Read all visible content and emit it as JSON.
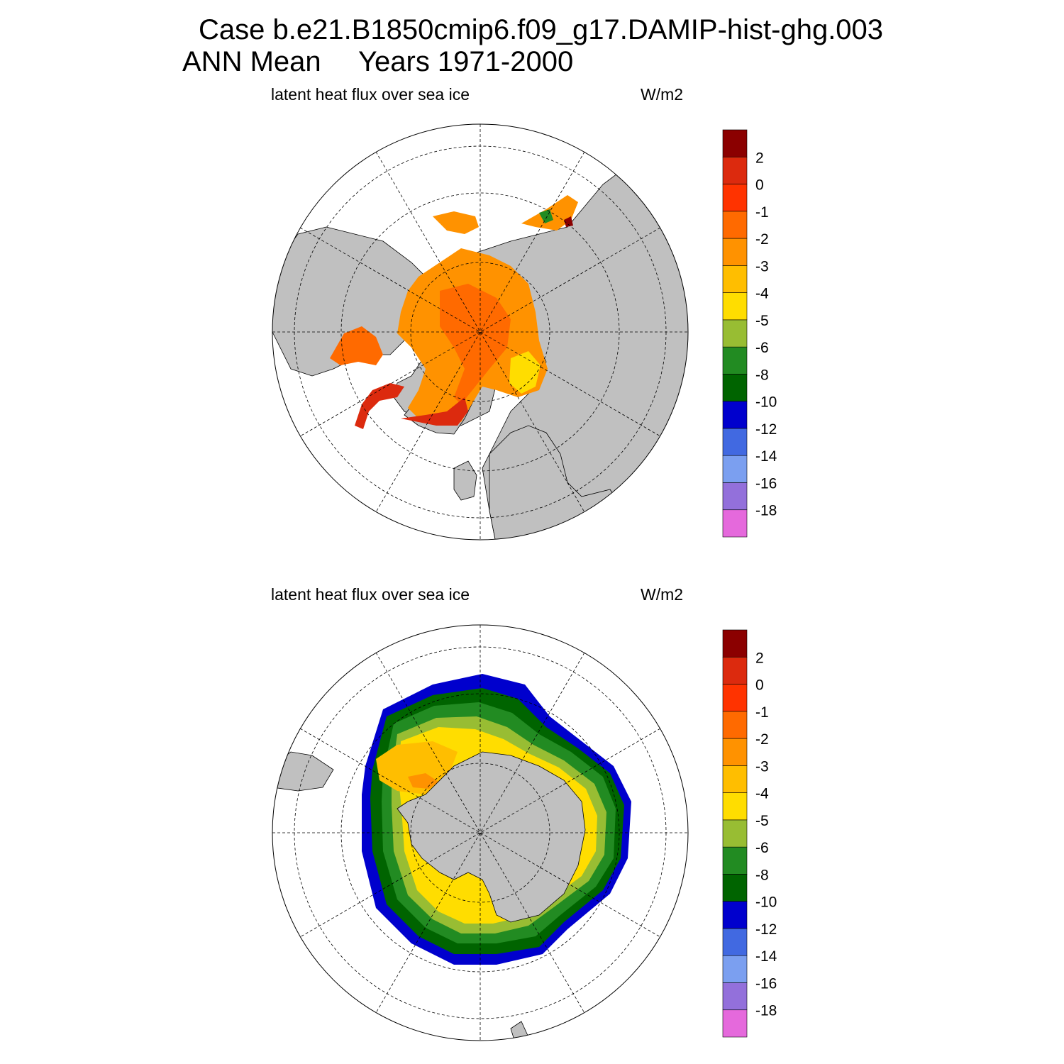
{
  "header": {
    "case_line": "Case b.e21.B1850cmip6.f09_g17.DAMIP-hist-ghg.003",
    "period_label": "ANN Mean",
    "years_label": "Years 1971-2000"
  },
  "colors": {
    "land": "#c0c0c0",
    "background": "#ffffff",
    "line": "#000000",
    "scale": [
      "#e569dc",
      "#9370db",
      "#7b9ff0",
      "#4169e1",
      "#0000cd",
      "#006400",
      "#228b22",
      "#98bd33",
      "#ffdd00",
      "#ffbe00",
      "#ff9200",
      "#ff6a00",
      "#ff3300",
      "#dc2a0e",
      "#8b0000"
    ]
  },
  "chart_data": [
    {
      "type": "heatmap",
      "projection": "north polar stereographic",
      "title": "latent heat flux over sea ice",
      "units": "W/m2",
      "colorbar_ticks": [
        "-18",
        "-16",
        "-14",
        "-12",
        "-10",
        "-8",
        "-6",
        "-5",
        "-4",
        "-3",
        "-2",
        "-1",
        "0",
        "2"
      ],
      "colorbar_bins": 15,
      "description_values": {
        "central_arctic": -1.5,
        "marginal_seas": -1,
        "barents_sea": 0.5
      }
    },
    {
      "type": "heatmap",
      "projection": "south polar stereographic",
      "title": "latent heat flux over sea ice",
      "units": "W/m2",
      "colorbar_ticks": [
        "-18",
        "-16",
        "-14",
        "-12",
        "-10",
        "-8",
        "-6",
        "-5",
        "-4",
        "-3",
        "-2",
        "-1",
        "0",
        "2"
      ],
      "colorbar_bins": 15,
      "description_values": {
        "weddell_sea": -3,
        "inner_pack": -4.5,
        "middle_pack": -7,
        "ice_edge": -12
      }
    }
  ]
}
